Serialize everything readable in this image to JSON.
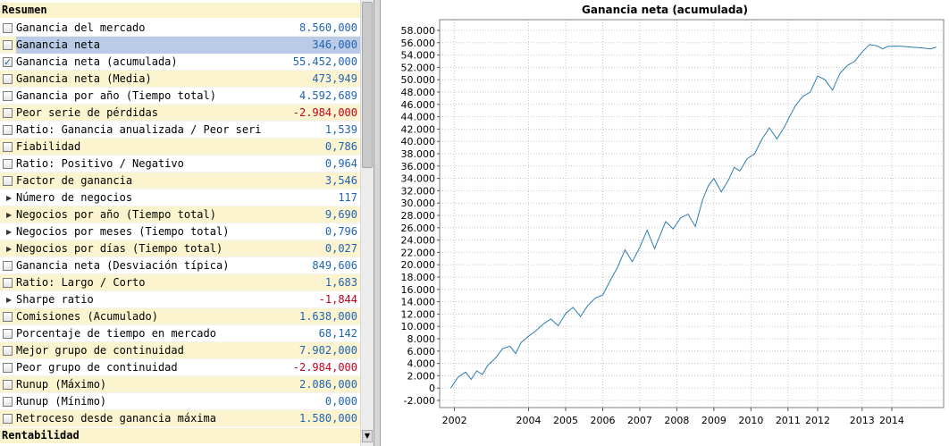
{
  "panel": {
    "header": "Resumen",
    "footer": "Rentabilidad",
    "rows": [
      {
        "label": "Ganancia del mercado",
        "value": "8.560,000",
        "icon": "checkbox",
        "checked": false,
        "alt": false,
        "negative": false,
        "selected": false
      },
      {
        "label": "Ganancia neta",
        "value": "346,000",
        "icon": "checkbox",
        "checked": false,
        "alt": true,
        "negative": false,
        "selected": true
      },
      {
        "label": "Ganancia neta (acumulada)",
        "value": "55.452,000",
        "icon": "checkbox",
        "checked": true,
        "alt": false,
        "negative": false,
        "selected": false
      },
      {
        "label": "Ganancia neta (Media)",
        "value": "473,949",
        "icon": "checkbox",
        "checked": false,
        "alt": true,
        "negative": false,
        "selected": false
      },
      {
        "label": "Ganancia por año (Tiempo total)",
        "value": "4.592,689",
        "icon": "checkbox",
        "checked": false,
        "alt": false,
        "negative": false,
        "selected": false
      },
      {
        "label": "Peor serie de pérdidas",
        "value": "-2.984,000",
        "icon": "checkbox",
        "checked": false,
        "alt": true,
        "negative": true,
        "selected": false
      },
      {
        "label": "Ratio: Ganancia anualizada / Peor serie de...",
        "value": "1,539",
        "icon": "checkbox",
        "checked": false,
        "alt": false,
        "negative": false,
        "selected": false
      },
      {
        "label": "Fiabilidad",
        "value": "0,786",
        "icon": "checkbox",
        "checked": false,
        "alt": true,
        "negative": false,
        "selected": false
      },
      {
        "label": "Ratio: Positivo / Negativo",
        "value": "0,964",
        "icon": "checkbox",
        "checked": false,
        "alt": false,
        "negative": false,
        "selected": false
      },
      {
        "label": "Factor de ganancia",
        "value": "3,546",
        "icon": "checkbox",
        "checked": false,
        "alt": true,
        "negative": false,
        "selected": false
      },
      {
        "label": "Número de negocios",
        "value": "117",
        "icon": "arrow",
        "checked": false,
        "alt": false,
        "negative": false,
        "selected": false
      },
      {
        "label": "Negocios por año (Tiempo total)",
        "value": "9,690",
        "icon": "arrow",
        "checked": false,
        "alt": true,
        "negative": false,
        "selected": false
      },
      {
        "label": "Negocios por meses (Tiempo total)",
        "value": "0,796",
        "icon": "arrow",
        "checked": false,
        "alt": false,
        "negative": false,
        "selected": false
      },
      {
        "label": "Negocios por días (Tiempo total)",
        "value": "0,027",
        "icon": "arrow",
        "checked": false,
        "alt": true,
        "negative": false,
        "selected": false
      },
      {
        "label": "Ganancia neta (Desviación típica)",
        "value": "849,606",
        "icon": "checkbox",
        "checked": false,
        "alt": false,
        "negative": false,
        "selected": false
      },
      {
        "label": "Ratio: Largo / Corto",
        "value": "1,683",
        "icon": "checkbox",
        "checked": false,
        "alt": true,
        "negative": false,
        "selected": false
      },
      {
        "label": "Sharpe ratio",
        "value": "-1,844",
        "icon": "arrow",
        "checked": false,
        "alt": false,
        "negative": true,
        "selected": false
      },
      {
        "label": "Comisiones (Acumulado)",
        "value": "1.638,000",
        "icon": "checkbox",
        "checked": false,
        "alt": true,
        "negative": false,
        "selected": false
      },
      {
        "label": "Porcentaje de tiempo en mercado",
        "value": "68,142",
        "icon": "checkbox",
        "checked": false,
        "alt": false,
        "negative": false,
        "selected": false
      },
      {
        "label": "Mejor grupo de continuidad",
        "value": "7.902,000",
        "icon": "checkbox",
        "checked": false,
        "alt": true,
        "negative": false,
        "selected": false
      },
      {
        "label": "Peor grupo de continuidad",
        "value": "-2.984,000",
        "icon": "checkbox",
        "checked": false,
        "alt": false,
        "negative": true,
        "selected": false
      },
      {
        "label": "Runup (Máximo)",
        "value": "2.086,000",
        "icon": "checkbox",
        "checked": false,
        "alt": true,
        "negative": false,
        "selected": false
      },
      {
        "label": "Runup (Mínimo)",
        "value": "0,000",
        "icon": "checkbox",
        "checked": false,
        "alt": false,
        "negative": false,
        "selected": false
      },
      {
        "label": "Retroceso desde ganancia máxima",
        "value": "1.580,000",
        "icon": "checkbox",
        "checked": false,
        "alt": true,
        "negative": false,
        "selected": false
      }
    ]
  },
  "chart_data": {
    "type": "line",
    "title": "Ganancia neta (acumulada)",
    "xlabel": "",
    "ylabel": "",
    "ylim": [
      -2000,
      58000
    ],
    "yticks": [
      -2000,
      0,
      2000,
      4000,
      6000,
      8000,
      10000,
      12000,
      14000,
      16000,
      18000,
      20000,
      22000,
      24000,
      26000,
      28000,
      30000,
      32000,
      34000,
      36000,
      38000,
      40000,
      42000,
      44000,
      46000,
      48000,
      50000,
      52000,
      54000,
      56000,
      58000
    ],
    "ytick_labels": [
      "-2.000",
      "0",
      "2.000",
      "4.000",
      "6.000",
      "8.000",
      "10.000",
      "12.000",
      "14.000",
      "16.000",
      "18.000",
      "20.000",
      "22.000",
      "24.000",
      "26.000",
      "28.000",
      "30.000",
      "32.000",
      "34.000",
      "36.000",
      "38.000",
      "40.000",
      "42.000",
      "44.000",
      "46.000",
      "48.000",
      "50.000",
      "52.000",
      "54.000",
      "56.000",
      "58.000"
    ],
    "xrange": [
      2001.6,
      2015.2
    ],
    "xticks": [
      2002.0,
      2004.0,
      2005.0,
      2006.0,
      2007.0,
      2008.0,
      2009.0,
      2010.0,
      2011.0,
      2011.8,
      2013.0,
      2013.8
    ],
    "xtick_labels": [
      "2002",
      "2004",
      "2005",
      "2006",
      "2007",
      "2008",
      "2009",
      "2010",
      "2011",
      "2012",
      "2013",
      "2014"
    ],
    "grid": true,
    "line_color": "#2d7db0",
    "series": [
      {
        "name": "Ganancia neta (acumulada)",
        "x": [
          2001.9,
          2002.1,
          2002.3,
          2002.45,
          2002.6,
          2002.75,
          2002.9,
          2003.1,
          2003.3,
          2003.5,
          2003.65,
          2003.8,
          2004.0,
          2004.2,
          2004.4,
          2004.6,
          2004.8,
          2005.0,
          2005.2,
          2005.4,
          2005.6,
          2005.8,
          2006.0,
          2006.2,
          2006.4,
          2006.6,
          2006.8,
          2007.0,
          2007.2,
          2007.4,
          2007.55,
          2007.7,
          2007.9,
          2008.1,
          2008.3,
          2008.5,
          2008.7,
          2008.85,
          2009.0,
          2009.2,
          2009.4,
          2009.55,
          2009.7,
          2009.9,
          2010.1,
          2010.3,
          2010.5,
          2010.7,
          2010.9,
          2011.05,
          2011.2,
          2011.4,
          2011.6,
          2011.8,
          2012.0,
          2012.2,
          2012.4,
          2012.6,
          2012.8,
          2013.0,
          2013.2,
          2013.4,
          2013.55,
          2013.7,
          2013.9,
          2014.1,
          2014.3,
          2014.5,
          2014.7,
          2014.85,
          2015.0
        ],
        "values": [
          0,
          1800,
          2600,
          1400,
          2800,
          2200,
          3700,
          4800,
          6400,
          6800,
          5600,
          7400,
          8400,
          9300,
          10400,
          11200,
          10100,
          12100,
          13100,
          11600,
          13400,
          14600,
          15100,
          17400,
          19600,
          22400,
          20500,
          22800,
          25600,
          22600,
          24800,
          27000,
          25800,
          27600,
          28200,
          26200,
          30600,
          32800,
          34000,
          31800,
          33800,
          35800,
          35200,
          37200,
          38000,
          40400,
          42200,
          40400,
          42300,
          44100,
          45800,
          47300,
          48000,
          50600,
          50000,
          48300,
          51000,
          52300,
          53000,
          54500,
          55700,
          55500,
          55000,
          55400,
          55452,
          55400,
          55300,
          55200,
          55100,
          55000,
          55300
        ]
      }
    ]
  }
}
